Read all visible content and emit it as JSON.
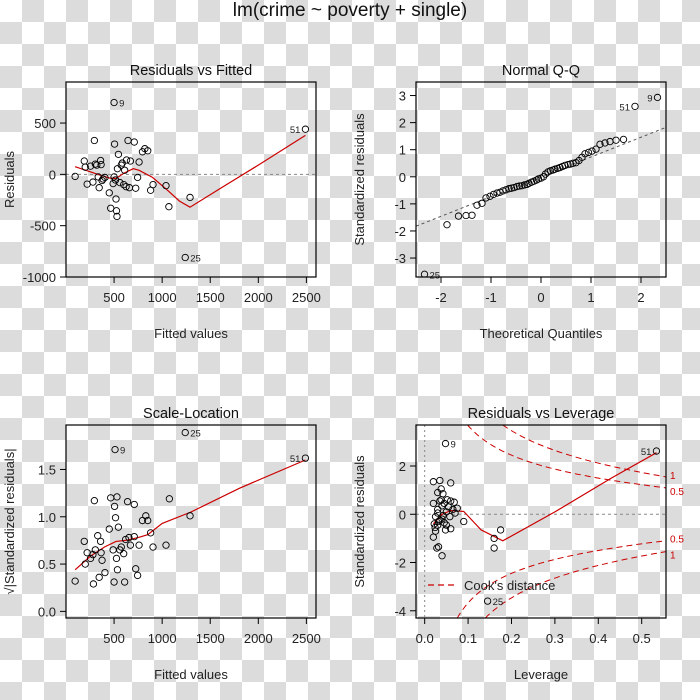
{
  "figure": {
    "title": "lm(crime ~ poverty + single)"
  },
  "colors": {
    "points": "#000000",
    "smooth": "#cc0000",
    "cook": "#cc0000",
    "reference": "#888888"
  },
  "chart_data": [
    {
      "id": "resid-fitted",
      "type": "scatter",
      "title": "Residuals vs Fitted",
      "xlabel": "Fitted values",
      "ylabel": "Residuals",
      "xlim": [
        0,
        2600
      ],
      "ylim": [
        -1000,
        900
      ],
      "xticks": [
        500,
        1000,
        1500,
        2000,
        2500
      ],
      "yticks": [
        -1000,
        -500,
        0,
        500
      ],
      "reference_line": 0,
      "points": [
        [
          95,
          -20
        ],
        [
          190,
          130
        ],
        [
          200,
          70
        ],
        [
          220,
          -95
        ],
        [
          255,
          80
        ],
        [
          280,
          -75
        ],
        [
          295,
          330
        ],
        [
          305,
          100
        ],
        [
          320,
          90
        ],
        [
          335,
          -25
        ],
        [
          345,
          -130
        ],
        [
          360,
          135
        ],
        [
          365,
          95
        ],
        [
          375,
          -60
        ],
        [
          385,
          -45
        ],
        [
          405,
          -30
        ],
        [
          450,
          -180
        ],
        [
          465,
          -330
        ],
        [
          490,
          -90
        ],
        [
          500,
          -25
        ],
        [
          505,
          295
        ],
        [
          515,
          -55
        ],
        [
          520,
          -240
        ],
        [
          525,
          -355
        ],
        [
          530,
          -410
        ],
        [
          535,
          55
        ],
        [
          545,
          195
        ],
        [
          560,
          -80
        ],
        [
          575,
          90
        ],
        [
          585,
          110
        ],
        [
          600,
          -100
        ],
        [
          610,
          40
        ],
        [
          625,
          -120
        ],
        [
          630,
          140
        ],
        [
          645,
          330
        ],
        [
          660,
          -130
        ],
        [
          670,
          130
        ],
        [
          710,
          315
        ],
        [
          725,
          -135
        ],
        [
          745,
          -30
        ],
        [
          760,
          120
        ],
        [
          795,
          220
        ],
        [
          820,
          250
        ],
        [
          850,
          230
        ],
        [
          880,
          -155
        ],
        [
          905,
          -100
        ],
        [
          1040,
          -110
        ],
        [
          1070,
          -315
        ],
        [
          1290,
          -225
        ],
        [
          500,
          700
        ],
        [
          1240,
          -810
        ],
        [
          2490,
          440
        ]
      ],
      "labels": [
        {
          "id": "9",
          "x": 500,
          "y": 700
        },
        {
          "id": "25",
          "x": 1240,
          "y": -810
        },
        {
          "id": "51",
          "x": 2490,
          "y": 440
        }
      ],
      "smooth": [
        [
          95,
          75
        ],
        [
          300,
          10
        ],
        [
          450,
          -35
        ],
        [
          520,
          -40
        ],
        [
          600,
          10
        ],
        [
          700,
          55
        ],
        [
          760,
          40
        ],
        [
          900,
          -30
        ],
        [
          1050,
          -150
        ],
        [
          1180,
          -260
        ],
        [
          1290,
          -320
        ],
        [
          1600,
          -140
        ],
        [
          2000,
          90
        ],
        [
          2490,
          380
        ]
      ]
    },
    {
      "id": "normal-qq",
      "type": "scatter",
      "title": "Normal Q-Q",
      "xlabel": "Theoretical Quantiles",
      "ylabel": "Standardized residuals",
      "xlim": [
        -2.5,
        2.5
      ],
      "ylim": [
        -3.7,
        3.5
      ],
      "xticks": [
        -2,
        -1,
        0,
        1,
        2
      ],
      "yticks": [
        -3,
        -2,
        -1,
        0,
        1,
        2,
        3
      ],
      "reference_line": {
        "slope": 0.73,
        "intercept": 0.0
      },
      "points": [
        [
          -2.33,
          -3.6
        ],
        [
          -1.88,
          -1.77
        ],
        [
          -1.65,
          -1.45
        ],
        [
          -1.5,
          -1.43
        ],
        [
          -1.38,
          -1.42
        ],
        [
          -1.28,
          -1.05
        ],
        [
          -1.18,
          -0.98
        ],
        [
          -1.1,
          -0.78
        ],
        [
          -1.02,
          -0.72
        ],
        [
          -0.95,
          -0.65
        ],
        [
          -0.88,
          -0.6
        ],
        [
          -0.82,
          -0.57
        ],
        [
          -0.76,
          -0.52
        ],
        [
          -0.7,
          -0.48
        ],
        [
          -0.64,
          -0.44
        ],
        [
          -0.59,
          -0.42
        ],
        [
          -0.54,
          -0.4
        ],
        [
          -0.48,
          -0.36
        ],
        [
          -0.43,
          -0.34
        ],
        [
          -0.38,
          -0.33
        ],
        [
          -0.33,
          -0.3
        ],
        [
          -0.28,
          -0.28
        ],
        [
          -0.24,
          -0.24
        ],
        [
          -0.19,
          -0.2
        ],
        [
          -0.14,
          -0.16
        ],
        [
          -0.09,
          -0.12
        ],
        [
          -0.05,
          -0.08
        ],
        [
          0.0,
          -0.05
        ],
        [
          0.05,
          0.0
        ],
        [
          0.09,
          0.1
        ],
        [
          0.14,
          0.18
        ],
        [
          0.19,
          0.22
        ],
        [
          0.24,
          0.25
        ],
        [
          0.28,
          0.28
        ],
        [
          0.33,
          0.31
        ],
        [
          0.38,
          0.34
        ],
        [
          0.43,
          0.38
        ],
        [
          0.48,
          0.42
        ],
        [
          0.54,
          0.45
        ],
        [
          0.59,
          0.47
        ],
        [
          0.64,
          0.5
        ],
        [
          0.7,
          0.52
        ],
        [
          0.76,
          0.6
        ],
        [
          0.82,
          0.72
        ],
        [
          0.88,
          0.85
        ],
        [
          0.95,
          0.9
        ],
        [
          1.02,
          0.95
        ],
        [
          1.1,
          1.02
        ],
        [
          1.18,
          1.2
        ],
        [
          1.28,
          1.25
        ],
        [
          1.38,
          1.3
        ],
        [
          1.5,
          1.35
        ],
        [
          1.65,
          1.38
        ],
        [
          1.88,
          2.6
        ],
        [
          2.33,
          2.93
        ]
      ],
      "labels": [
        {
          "id": "25",
          "x": -2.33,
          "y": -3.6
        },
        {
          "id": "51",
          "x": 1.88,
          "y": 2.6
        },
        {
          "id": "9",
          "x": 2.33,
          "y": 2.93
        }
      ]
    },
    {
      "id": "scale-location",
      "type": "scatter",
      "title": "Scale-Location",
      "xlabel": "Fitted values",
      "ylabel": "√|Standardized residuals|",
      "xlim": [
        0,
        2600
      ],
      "ylim": [
        -0.07,
        1.97
      ],
      "xticks": [
        500,
        1000,
        1500,
        2000,
        2500
      ],
      "yticks": [
        0.0,
        0.5,
        1.0,
        1.5
      ],
      "ytick_labels": [
        "0.0",
        "0.5",
        "1.0",
        "1.5"
      ],
      "points": [
        [
          95,
          0.32
        ],
        [
          190,
          0.74
        ],
        [
          200,
          0.5
        ],
        [
          220,
          0.62
        ],
        [
          255,
          0.56
        ],
        [
          280,
          0.6
        ],
        [
          285,
          0.29
        ],
        [
          295,
          1.17
        ],
        [
          305,
          0.65
        ],
        [
          330,
          0.8
        ],
        [
          345,
          0.36
        ],
        [
          360,
          0.74
        ],
        [
          365,
          0.62
        ],
        [
          375,
          0.54
        ],
        [
          405,
          0.41
        ],
        [
          450,
          0.87
        ],
        [
          465,
          1.2
        ],
        [
          490,
          0.65
        ],
        [
          500,
          0.31
        ],
        [
          505,
          1.11
        ],
        [
          515,
          0.99
        ],
        [
          525,
          0.56
        ],
        [
          530,
          1.21
        ],
        [
          535,
          0.44
        ],
        [
          545,
          0.89
        ],
        [
          560,
          0.65
        ],
        [
          575,
          0.68
        ],
        [
          600,
          0.61
        ],
        [
          610,
          0.31
        ],
        [
          620,
          0.76
        ],
        [
          640,
          1.16
        ],
        [
          655,
          0.78
        ],
        [
          670,
          0.7
        ],
        [
          710,
          1.13
        ],
        [
          710,
          0.79
        ],
        [
          725,
          0.45
        ],
        [
          745,
          0.38
        ],
        [
          760,
          0.7
        ],
        [
          795,
          0.96
        ],
        [
          830,
          1.01
        ],
        [
          850,
          0.96
        ],
        [
          880,
          0.83
        ],
        [
          905,
          0.68
        ],
        [
          1040,
          0.7
        ],
        [
          1075,
          1.19
        ],
        [
          1290,
          1.01
        ],
        [
          510,
          1.71
        ],
        [
          1240,
          1.89
        ],
        [
          2490,
          1.62
        ]
      ],
      "labels": [
        {
          "id": "9",
          "x": 510,
          "y": 1.71
        },
        {
          "id": "25",
          "x": 1240,
          "y": 1.89
        },
        {
          "id": "51",
          "x": 2490,
          "y": 1.62
        }
      ],
      "smooth": [
        [
          95,
          0.44
        ],
        [
          250,
          0.58
        ],
        [
          400,
          0.68
        ],
        [
          520,
          0.74
        ],
        [
          620,
          0.75
        ],
        [
          750,
          0.78
        ],
        [
          850,
          0.81
        ],
        [
          1000,
          0.93
        ],
        [
          1300,
          1.05
        ],
        [
          1800,
          1.3
        ],
        [
          2490,
          1.6
        ]
      ]
    },
    {
      "id": "resid-leverage",
      "type": "scatter",
      "title": "Residuals vs Leverage",
      "xlabel": "Leverage",
      "ylabel": "Standardized residuals",
      "xlim": [
        -0.02,
        0.556
      ],
      "ylim": [
        -4.3,
        3.7
      ],
      "xticks": [
        0.0,
        0.1,
        0.2,
        0.3,
        0.4,
        0.5
      ],
      "xtick_labels": [
        "0.0",
        "0.1",
        "0.2",
        "0.3",
        "0.4",
        "0.5"
      ],
      "yticks": [
        -4,
        -2,
        0,
        2
      ],
      "reference_lines": {
        "h": 0,
        "v": 0
      },
      "points": [
        [
          0.02,
          1.35
        ],
        [
          0.025,
          -0.1
        ],
        [
          0.02,
          0.45
        ],
        [
          0.022,
          -0.4
        ],
        [
          0.02,
          -0.95
        ],
        [
          0.025,
          -0.7
        ],
        [
          0.03,
          0.9
        ],
        [
          0.03,
          -0.45
        ],
        [
          0.03,
          0.2
        ],
        [
          0.032,
          -0.3
        ],
        [
          0.035,
          1.4
        ],
        [
          0.035,
          0.55
        ],
        [
          0.035,
          -0.25
        ],
        [
          0.038,
          1.05
        ],
        [
          0.04,
          0.35
        ],
        [
          0.04,
          -0.2
        ],
        [
          0.042,
          0.85
        ],
        [
          0.045,
          0.45
        ],
        [
          0.045,
          -0.35
        ],
        [
          0.048,
          -0.65
        ],
        [
          0.05,
          0.1
        ],
        [
          0.05,
          -0.45
        ],
        [
          0.052,
          0.6
        ],
        [
          0.055,
          0.3
        ],
        [
          0.058,
          -0.1
        ],
        [
          0.06,
          1.3
        ],
        [
          0.06,
          0.55
        ],
        [
          0.06,
          -0.6
        ],
        [
          0.065,
          0.2
        ],
        [
          0.068,
          0.5
        ],
        [
          0.07,
          0.05
        ],
        [
          0.075,
          0.25
        ],
        [
          0.028,
          -1.4
        ],
        [
          0.032,
          -1.35
        ],
        [
          0.04,
          -1.72
        ],
        [
          0.024,
          -0.55
        ],
        [
          0.03,
          0.05
        ],
        [
          0.038,
          0.6
        ],
        [
          0.042,
          -0.05
        ],
        [
          0.09,
          -0.3
        ],
        [
          0.16,
          -1.0
        ],
        [
          0.16,
          -1.4
        ],
        [
          0.175,
          -0.65
        ],
        [
          0.048,
          2.93
        ],
        [
          0.534,
          2.62
        ],
        [
          0.145,
          -3.6
        ]
      ],
      "labels": [
        {
          "id": "9",
          "x": 0.048,
          "y": 2.93
        },
        {
          "id": "51",
          "x": 0.534,
          "y": 2.62
        },
        {
          "id": "25",
          "x": 0.145,
          "y": -3.6
        }
      ],
      "smooth": [
        [
          0.02,
          -0.4
        ],
        [
          0.04,
          0.0
        ],
        [
          0.06,
          0.15
        ],
        [
          0.09,
          0.12
        ],
        [
          0.13,
          -0.65
        ],
        [
          0.18,
          -1.1
        ],
        [
          0.3,
          0.1
        ],
        [
          0.43,
          1.5
        ],
        [
          0.534,
          2.55
        ]
      ],
      "cook_levels": [
        0.5,
        1
      ],
      "cook_labels": [
        "0.5",
        "1",
        "0.5",
        "1"
      ],
      "legend": {
        "label": "Cook's distance",
        "placement": "bottom-left"
      }
    }
  ]
}
